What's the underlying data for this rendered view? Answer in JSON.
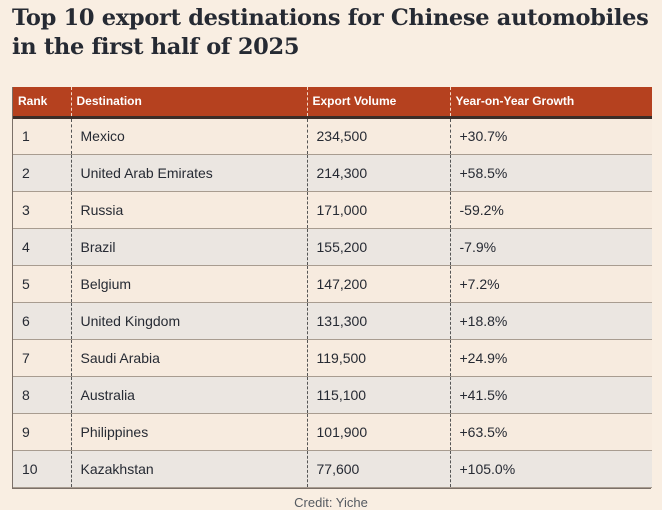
{
  "title": "Top 10 export destinations for Chinese automobiles in the first half of 2025",
  "table": {
    "headers": [
      "Rank",
      "Destination",
      "Export Volume",
      "Year-on-Year Growth"
    ],
    "rows": [
      [
        "1",
        "Mexico",
        "234,500",
        "+30.7%"
      ],
      [
        "2",
        "United Arab Emirates",
        "214,300",
        "+58.5%"
      ],
      [
        "3",
        "Russia",
        "171,000",
        "-59.2%"
      ],
      [
        "4",
        "Brazil",
        "155,200",
        "-7.9%"
      ],
      [
        "5",
        "Belgium",
        "147,200",
        "+7.2%"
      ],
      [
        "6",
        "United Kingdom",
        "131,300",
        "+18.8%"
      ],
      [
        "7",
        "Saudi Arabia",
        "119,500",
        "+24.9%"
      ],
      [
        "8",
        "Australia",
        "115,100",
        "+41.5%"
      ],
      [
        "9",
        "Philippines",
        "101,900",
        "+63.5%"
      ],
      [
        "10",
        "Kazakhstan",
        "77,600",
        "+105.0%"
      ]
    ]
  },
  "credit": "Credit: Yiche",
  "colors": {
    "header_background": "#b5411f",
    "page_background": "#f9eee2"
  }
}
